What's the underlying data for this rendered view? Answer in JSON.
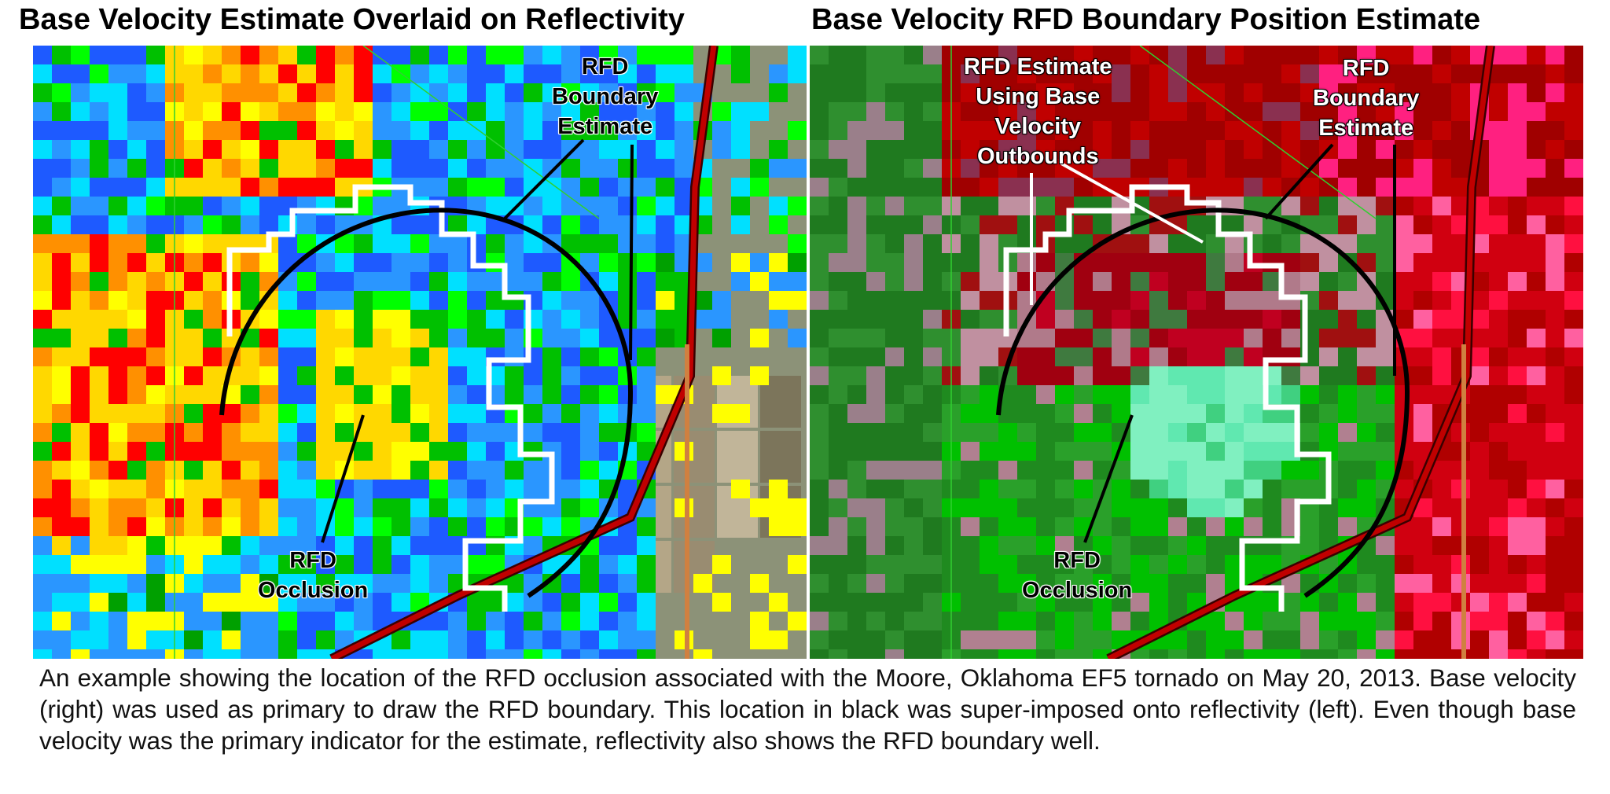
{
  "titles": {
    "left": "Base Velocity Estimate Overlaid on Reflectivity",
    "right": "Base Velocity RFD Boundary Position Estimate"
  },
  "left_panel": {
    "label_boundary": "RFD\nBoundary\nEstimate",
    "label_occlusion": "RFD\nOcclusion"
  },
  "right_panel": {
    "label_estimate": "RFD Estimate\nUsing Base\nVelocity\nOutbounds",
    "label_boundary": "RFD\nBoundary\nEstimate",
    "label_occlusion": "RFD\nOcclusion"
  },
  "caption": "An example showing the location of the RFD occlusion associated with the Moore, Oklahoma EF5 tornado on May 20, 2013.  Base velocity (right) was used as primary to draw the RFD boundary.  This location in black was super-imposed onto reflectivity (left).  Even though base velocity was the primary indicator for the estimate, reflectivity also shows the RFD boundary well.",
  "colors": {
    "reflectivity_high": "#ff0000",
    "reflectivity_mid": "#ffff00",
    "reflectivity_low": "#00a0ff",
    "velocity_outbound": "#c80000",
    "velocity_inbound": "#00b000",
    "boundary_line": "#000000",
    "warning_outline": "#ffffff"
  }
}
